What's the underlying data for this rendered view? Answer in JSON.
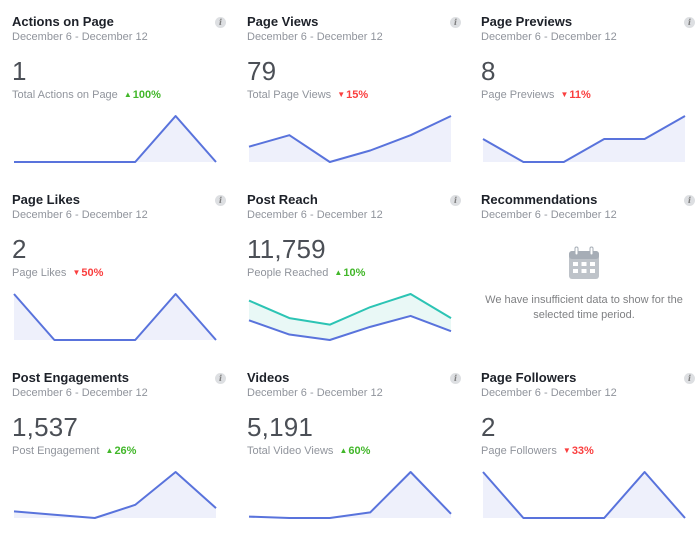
{
  "colors": {
    "line": "#5973dc",
    "fill": "#eef0fb",
    "teal": "#2cc4b4",
    "teal_fill": "#e9f8f6",
    "up": "#42b72a",
    "down": "#fa3e3e"
  },
  "cards": [
    {
      "title": "Actions on Page",
      "date": "December 6 - December 12",
      "value": "1",
      "sub_label": "Total Actions on Page",
      "change": "100%",
      "direction": "up",
      "series": [
        [
          0,
          0,
          0,
          0,
          1,
          0
        ]
      ]
    },
    {
      "title": "Page Views",
      "date": "December 6 - December 12",
      "value": "79",
      "sub_label": "Total Page Views",
      "change": "15%",
      "direction": "down",
      "series": [
        [
          8,
          11,
          4,
          7,
          11,
          16
        ]
      ]
    },
    {
      "title": "Page Previews",
      "date": "December 6 - December 12",
      "value": "8",
      "sub_label": "Page Previews",
      "change": "11%",
      "direction": "down",
      "series": [
        [
          1,
          0,
          0,
          1,
          1,
          2
        ]
      ]
    },
    {
      "title": "Page Likes",
      "date": "December 6 - December 12",
      "value": "2",
      "sub_label": "Page Likes",
      "change": "50%",
      "direction": "down",
      "series": [
        [
          1,
          0,
          0,
          0,
          1,
          0
        ]
      ]
    },
    {
      "title": "Post Reach",
      "date": "December 6 - December 12",
      "value": "11,759",
      "sub_label": "People Reached",
      "change": "10%",
      "direction": "up",
      "series": [
        [
          2000,
          1200,
          900,
          1700,
          2300,
          1200
        ],
        [
          1100,
          450,
          200,
          800,
          1300,
          600
        ]
      ]
    },
    {
      "title": "Recommendations",
      "date": "December 6 - December 12",
      "empty_message": "We have insufficient data to show for the selected time period."
    },
    {
      "title": "Post Engagements",
      "date": "December 6 - December 12",
      "value": "1,537",
      "sub_label": "Post Engagement",
      "change": "26%",
      "direction": "up",
      "series": [
        [
          140,
          120,
          100,
          180,
          380,
          160
        ]
      ]
    },
    {
      "title": "Videos",
      "date": "December 6 - December 12",
      "value": "5,191",
      "sub_label": "Total Video Views",
      "change": "60%",
      "direction": "up",
      "series": [
        [
          300,
          250,
          250,
          450,
          1900,
          400
        ]
      ]
    },
    {
      "title": "Page Followers",
      "date": "December 6 - December 12",
      "value": "2",
      "sub_label": "Page Followers",
      "change": "33%",
      "direction": "down",
      "series": [
        [
          1,
          0,
          0,
          0,
          1,
          0
        ]
      ]
    }
  ]
}
